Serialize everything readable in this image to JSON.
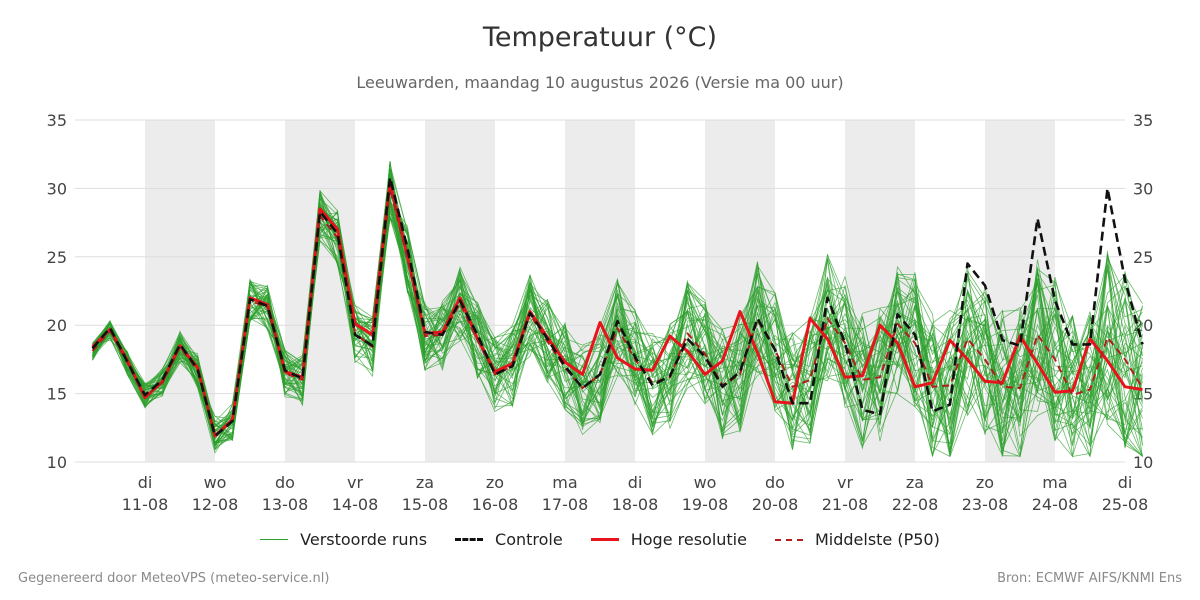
{
  "header": {
    "title": "Temperatuur (°C)",
    "subtitle": "Leeuwarden, maandag 10 augustus 2026 (Versie ma 00 uur)"
  },
  "footer": {
    "left": "Gegenereerd door MeteoVPS (meteo-service.nl)",
    "right": "Bron: ECMWF AIFS/KNMI Ens"
  },
  "colors": {
    "ensemble": "#2ca02c",
    "control": "#111111",
    "hires": "#e8141b",
    "median": "#b21e1e",
    "weekend_band": "#ececec",
    "grid": "#dddddd"
  },
  "chart_data": {
    "type": "line",
    "ylim": [
      10,
      35
    ],
    "yticks": [
      10,
      15,
      20,
      25,
      30,
      35
    ],
    "xlim_days": [
      0,
      15
    ],
    "x_step_hours": 6,
    "x_start": "2026-08-10 06:00",
    "day_labels": [
      {
        "day": "di",
        "date": "11-08"
      },
      {
        "day": "wo",
        "date": "12-08"
      },
      {
        "day": "do",
        "date": "13-08"
      },
      {
        "day": "vr",
        "date": "14-08"
      },
      {
        "day": "za",
        "date": "15-08"
      },
      {
        "day": "zo",
        "date": "16-08"
      },
      {
        "day": "ma",
        "date": "17-08"
      },
      {
        "day": "di",
        "date": "18-08"
      },
      {
        "day": "wo",
        "date": "19-08"
      },
      {
        "day": "do",
        "date": "20-08"
      },
      {
        "day": "vr",
        "date": "21-08"
      },
      {
        "day": "za",
        "date": "22-08"
      },
      {
        "day": "zo",
        "date": "23-08"
      },
      {
        "day": "ma",
        "date": "24-08"
      },
      {
        "day": "di",
        "date": "25-08"
      }
    ],
    "shaded_days": [
      "11-08",
      "13-08",
      "15-08",
      "17-08",
      "19-08",
      "21-08",
      "23-08"
    ],
    "legend": [
      {
        "key": "ensemble",
        "label": "Verstoorde runs",
        "style": "thin"
      },
      {
        "key": "control",
        "label": "Controle",
        "style": "dashed"
      },
      {
        "key": "hires",
        "label": "Hoge resolutie",
        "style": "solid"
      },
      {
        "key": "median",
        "label": "Middelste (P50)",
        "style": "dashed"
      }
    ],
    "series": [
      {
        "key": "control",
        "values": [
          18.3,
          19.8,
          17.3,
          14.9,
          16.0,
          18.6,
          16.8,
          11.9,
          13.0,
          21.9,
          21.4,
          16.7,
          16.1,
          28.3,
          26.7,
          19.3,
          18.5,
          30.8,
          25.6,
          19.5,
          19.3,
          21.8,
          19.3,
          16.4,
          17.0,
          20.9,
          19.0,
          17.0,
          15.4,
          16.4,
          20.3,
          17.7,
          15.6,
          16.3,
          19.0,
          17.7,
          15.5,
          16.6,
          20.5,
          18.2,
          14.3,
          14.3,
          22.0,
          18.7,
          13.8,
          13.5,
          20.8,
          19.3,
          13.7,
          14.2,
          24.5,
          22.9,
          18.9,
          18.5,
          27.8,
          21.8,
          18.6,
          18.6,
          30.0,
          23.3,
          18.6
        ]
      },
      {
        "key": "hires",
        "values": [
          18.4,
          19.7,
          17.4,
          14.7,
          15.9,
          18.5,
          16.9,
          11.9,
          13.1,
          22.0,
          21.5,
          16.6,
          16.2,
          28.5,
          27.0,
          20.1,
          19.3,
          30.4,
          25.0,
          19.4,
          19.5,
          22.0,
          19.0,
          16.6,
          17.2,
          21.0,
          19.1,
          17.3,
          16.4,
          20.2,
          17.6,
          16.8,
          16.7,
          19.2,
          18.1,
          16.4,
          17.4,
          21.0,
          18.0,
          14.4,
          14.3,
          20.5,
          19.0,
          16.2,
          16.3,
          20.0,
          18.7,
          15.5,
          15.8,
          18.9,
          17.5,
          15.9,
          15.8,
          19.2,
          17.2,
          15.1,
          15.2,
          19.0,
          17.4,
          15.5,
          15.3
        ]
      },
      {
        "key": "median",
        "values": [
          18.1,
          19.6,
          17.2,
          14.8,
          15.8,
          18.4,
          16.7,
          12.0,
          13.0,
          21.8,
          21.3,
          16.5,
          16.0,
          28.0,
          26.4,
          19.4,
          18.4,
          30.0,
          24.8,
          19.2,
          19.3,
          21.6,
          18.9,
          16.4,
          17.0,
          20.8,
          18.8,
          16.9,
          15.4,
          16.4,
          19.8,
          17.5,
          15.8,
          16.2,
          19.4,
          17.9,
          15.6,
          16.4,
          20.4,
          18.2,
          15.5,
          16.0,
          20.5,
          18.7,
          16.0,
          16.2,
          20.1,
          18.7,
          15.5,
          15.6,
          19.0,
          17.5,
          15.5,
          15.4,
          19.3,
          17.5,
          14.9,
          15.3,
          19.1,
          17.5,
          15.4
        ]
      }
    ]
  }
}
